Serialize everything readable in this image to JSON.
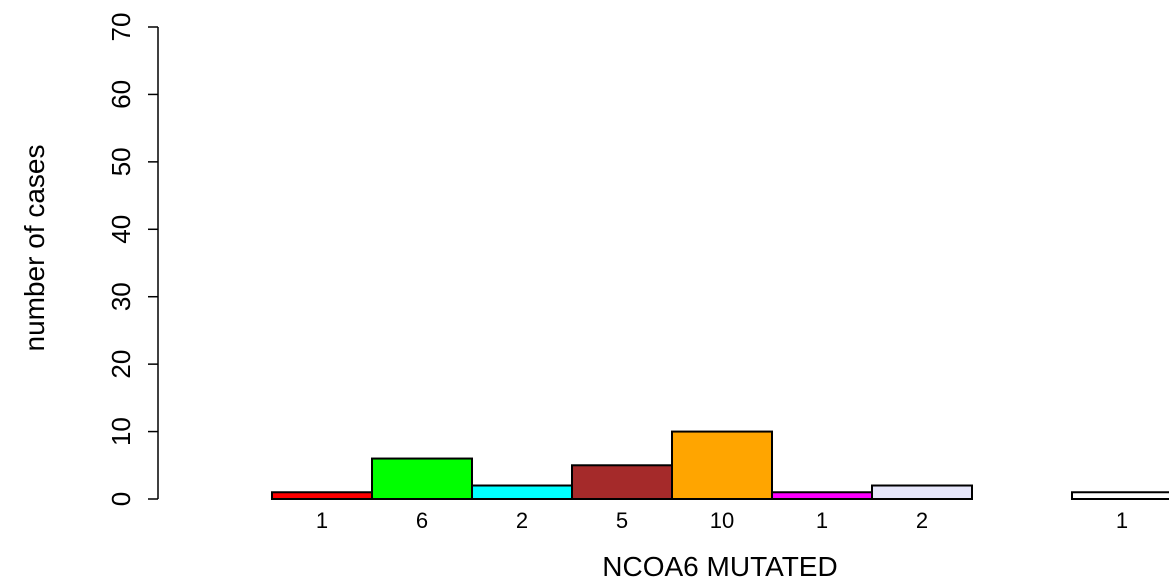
{
  "chart_data": {
    "type": "bar",
    "title": "",
    "xlabel": "NCOA6 MUTATED",
    "ylabel": "number of cases",
    "ylim": [
      0,
      70
    ],
    "yticks": [
      0,
      10,
      20,
      30,
      40,
      50,
      60,
      70
    ],
    "grid": false,
    "legend": "none",
    "bars": [
      {
        "value": 1,
        "label": "1",
        "color": "#ff0000"
      },
      {
        "value": 6,
        "label": "6",
        "color": "#00ff00"
      },
      {
        "value": 2,
        "label": "2",
        "color": "#00ffff"
      },
      {
        "value": 5,
        "label": "5",
        "color": "#a52a2a"
      },
      {
        "value": 10,
        "label": "10",
        "color": "#ffa500"
      },
      {
        "value": 1,
        "label": "1",
        "color": "#ff00ff"
      },
      {
        "value": 2,
        "label": "2",
        "color": "#e6e6fa"
      },
      {
        "value": 0,
        "label": "",
        "color": "#ffffff"
      },
      {
        "value": 1,
        "label": "1",
        "color": "#ffffff"
      }
    ]
  }
}
